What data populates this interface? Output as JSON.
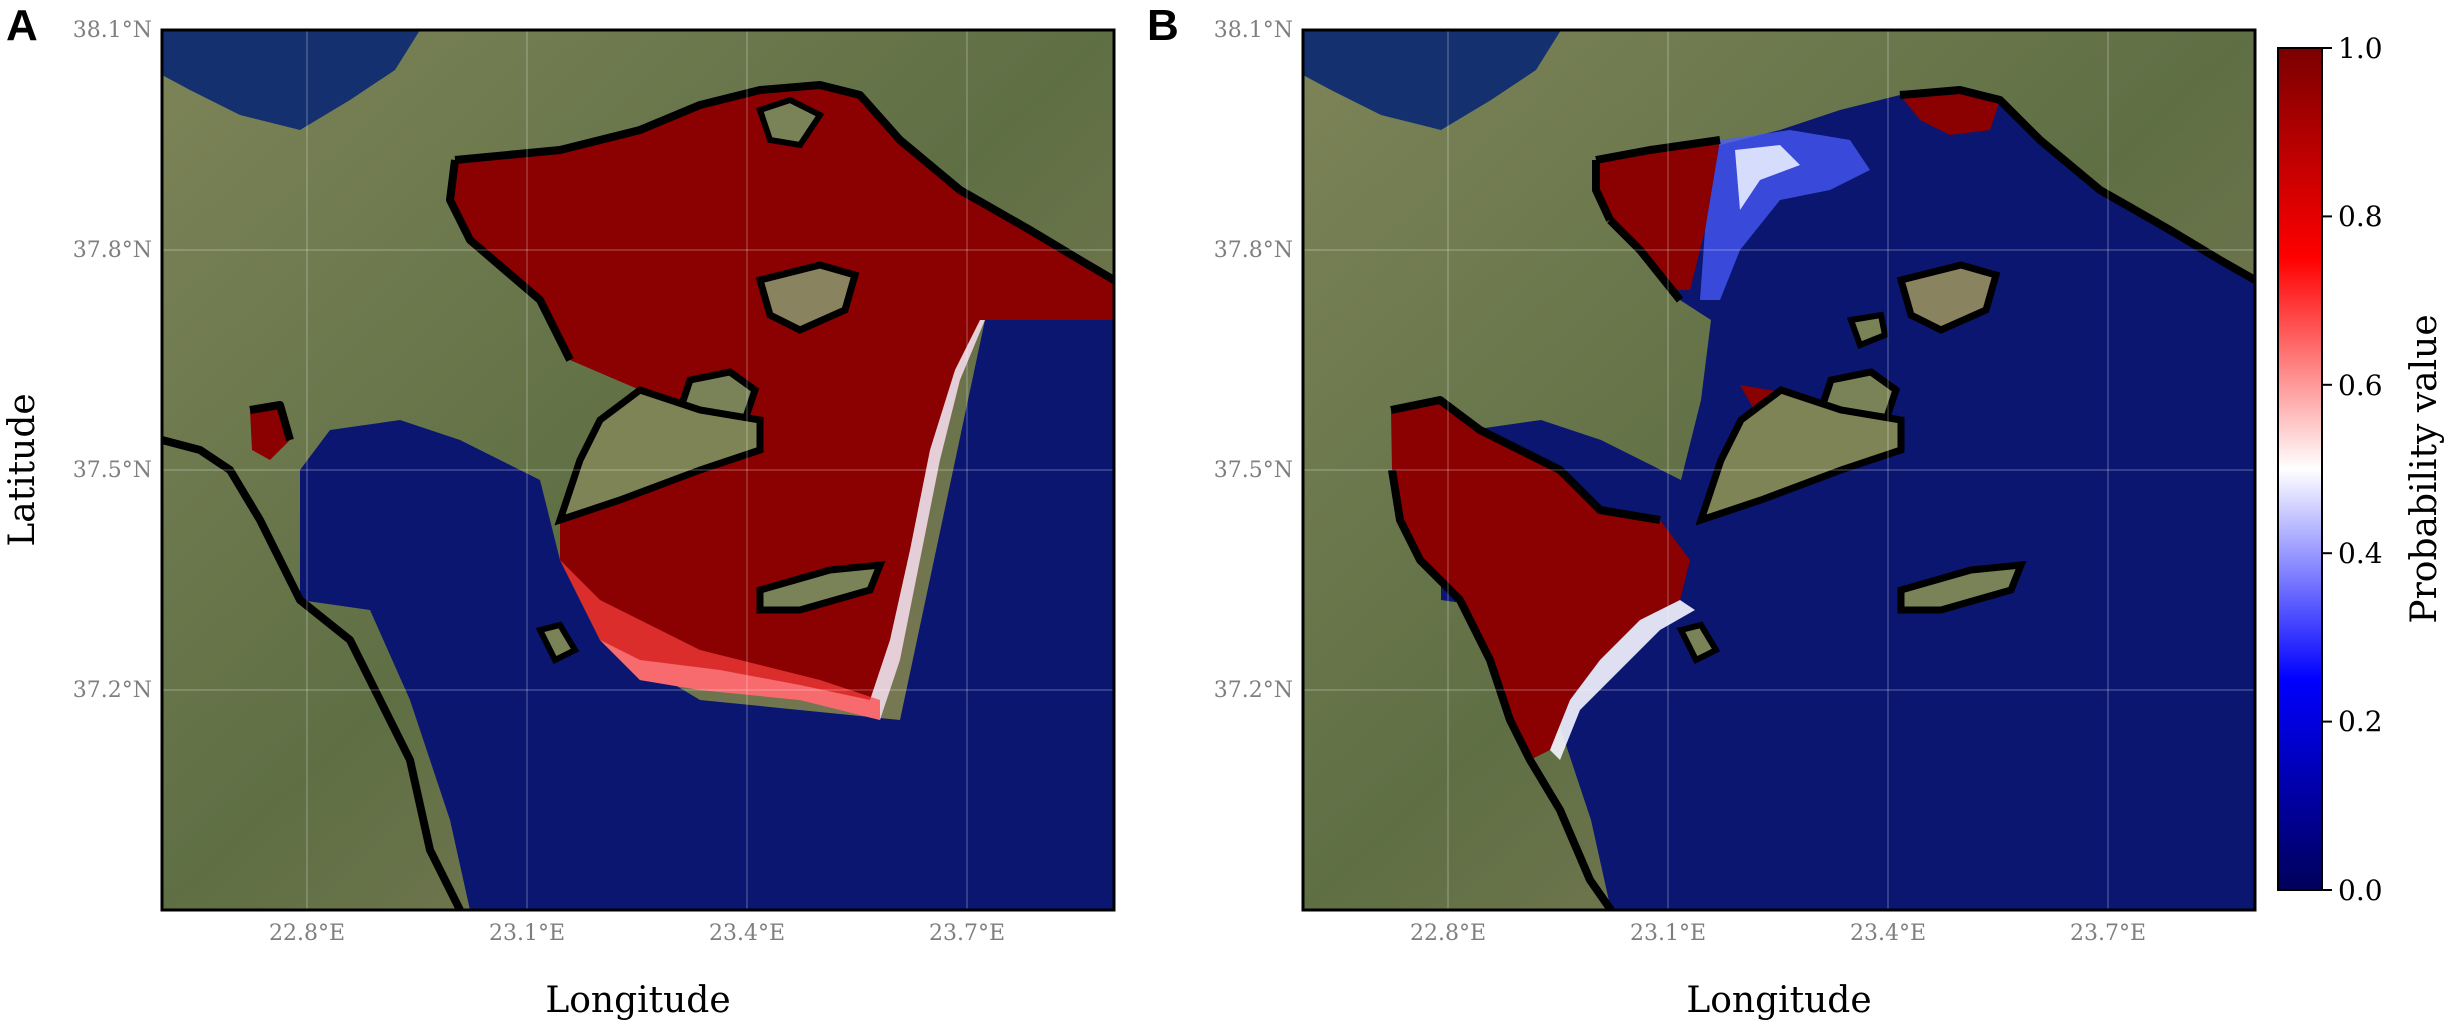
{
  "panels": [
    {
      "letter": "A",
      "x_ticks": [
        "22.8°E",
        "23.1°E",
        "23.4°E",
        "23.7°E"
      ],
      "y_ticks": [
        "38.1°N",
        "37.8°N",
        "37.5°N",
        "37.2°N"
      ],
      "xlabel": "Longitude",
      "ylabel": "Latitude"
    },
    {
      "letter": "B",
      "x_ticks": [
        "22.8°E",
        "23.1°E",
        "23.4°E",
        "23.7°E"
      ],
      "y_ticks": [
        "38.1°N",
        "37.8°N",
        "37.5°N",
        "37.2°N"
      ],
      "xlabel": "Longitude",
      "ylabel": ""
    }
  ],
  "colorbar": {
    "label": "Probability value",
    "ticks": [
      "0.0",
      "0.2",
      "0.4",
      "0.6",
      "0.8",
      "1.0"
    ],
    "range": [
      0.0,
      1.0
    ],
    "colors": [
      "#00005a",
      "#0000ff",
      "#ffffff",
      "#ff0000",
      "#7a0000"
    ]
  },
  "colors": {
    "land": "#6f7a52",
    "deep_sea": "#0a1670",
    "coastline": "#000000",
    "high_probability": "#8b0000"
  }
}
